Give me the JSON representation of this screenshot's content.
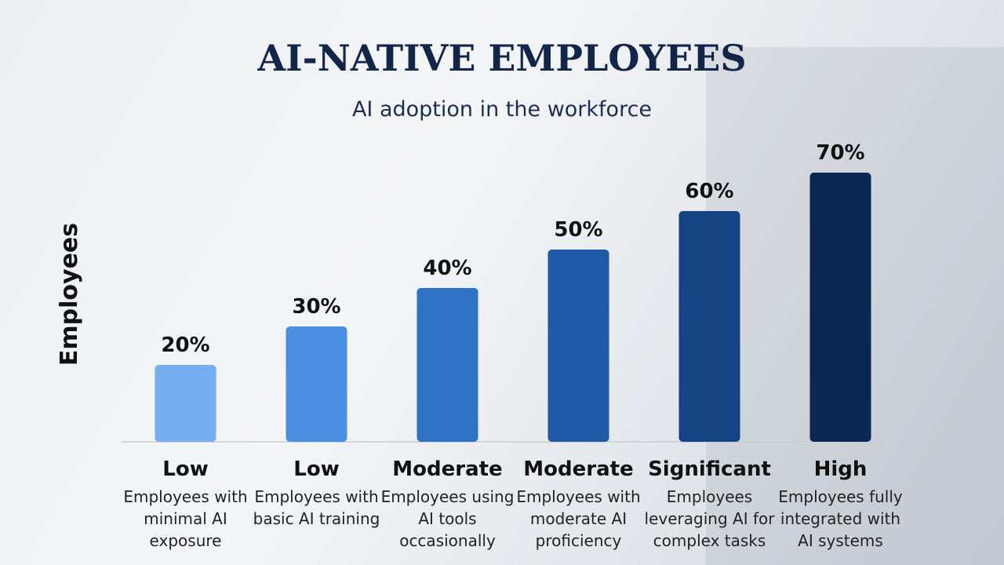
{
  "chart_data": {
    "type": "bar",
    "title": "AI-NATIVE EMPLOYEES",
    "subtitle": "AI adoption in the workforce",
    "y_label": "Employees",
    "categories": [
      "Low",
      "Low",
      "Moderate",
      "Moderate",
      "Significant",
      "High"
    ],
    "descriptions": [
      "Employees with minimal AI exposure",
      "Employees with basic AI training",
      "Employees using AI tools occasionally",
      "Employees with moderate AI proficiency",
      "Employees leveraging AI for complex tasks",
      "Employees fully integrated with AI systems"
    ],
    "values": [
      20,
      30,
      40,
      50,
      60,
      70
    ],
    "value_labels": [
      "20%",
      "30%",
      "40%",
      "50%",
      "60%",
      "70%"
    ],
    "colors": [
      "#74aef0",
      "#4a90e2",
      "#2e72c6",
      "#1e5aa6",
      "#154484",
      "#0b2852"
    ]
  }
}
